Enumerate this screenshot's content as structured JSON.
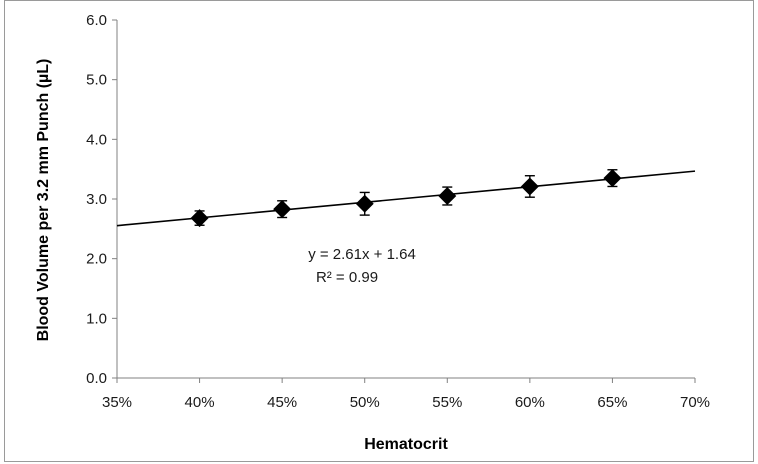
{
  "chart_data": {
    "type": "scatter",
    "xlabel": "Hematocrit",
    "ylabel": "Blood Volume per 3.2 mm Punch (µL)",
    "xlim": [
      0.35,
      0.7
    ],
    "ylim": [
      0.0,
      6.0
    ],
    "x_ticks": [
      "35%",
      "40%",
      "45%",
      "50%",
      "55%",
      "60%",
      "65%",
      "70%"
    ],
    "y_ticks": [
      "0.0",
      "1.0",
      "2.0",
      "3.0",
      "4.0",
      "5.0",
      "6.0"
    ],
    "x_tick_values": [
      0.35,
      0.4,
      0.45,
      0.5,
      0.55,
      0.6,
      0.65,
      0.7
    ],
    "y_tick_values": [
      0,
      1,
      2,
      3,
      4,
      5,
      6
    ],
    "series": [
      {
        "x": [
          0.4,
          0.45,
          0.5,
          0.55,
          0.6,
          0.65
        ],
        "y": [
          2.68,
          2.83,
          2.92,
          3.05,
          3.21,
          3.35
        ],
        "error": [
          0.12,
          0.14,
          0.19,
          0.15,
          0.18,
          0.14
        ],
        "marker": "diamond",
        "color": "#000000"
      }
    ],
    "trendline": {
      "slope": 2.61,
      "intercept": 1.64,
      "x_range": [
        0.35,
        0.7
      ]
    },
    "annotations": [
      "y = 2.61x + 1.64",
      "R² = 0.99"
    ],
    "grid": false,
    "legend": "none"
  }
}
